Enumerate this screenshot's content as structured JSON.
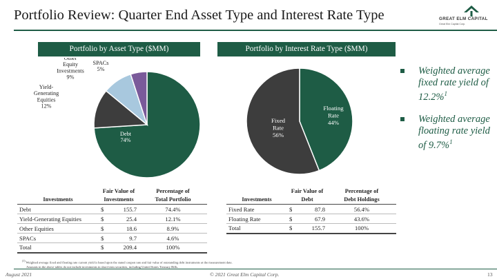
{
  "header": {
    "title": "Portfolio Review: Quarter End Asset Type and Interest Rate Type",
    "logo_name": "GREAT ELM CAPITAL",
    "logo_tagline": "Great Elm Capital Corp.",
    "brand_color": "#1e5c45"
  },
  "chart_data": [
    {
      "type": "pie",
      "title": "Portfolio by Asset Type ($MM)",
      "slices": [
        {
          "label": [
            "Debt",
            "74%"
          ],
          "value": 74,
          "color": "#1e5c45"
        },
        {
          "label": [
            "Yield-",
            "Generating",
            "Equities",
            "12%"
          ],
          "value": 12,
          "color": "#3d3d3d"
        },
        {
          "label": [
            "Other",
            "Equity",
            "Investments",
            "9%"
          ],
          "value": 9,
          "color": "#a8c8de"
        },
        {
          "label": [
            "SPACs",
            "5%"
          ],
          "value": 5,
          "color": "#7a5a9a"
        }
      ]
    },
    {
      "type": "pie",
      "title": "Portfolio by Interest Rate Type ($MM)",
      "slices": [
        {
          "label": [
            "Floating",
            "Rate",
            "44%"
          ],
          "value": 44,
          "color": "#1e5c45"
        },
        {
          "label": [
            "Fixed",
            "Rate",
            "56%"
          ],
          "value": 56,
          "color": "#3d3d3d"
        }
      ]
    }
  ],
  "bullets": [
    {
      "text": "Weighted average fixed rate yield of 12.2%",
      "sup": "1"
    },
    {
      "text": "Weighted average floating rate yield of 9.7%",
      "sup": "1"
    }
  ],
  "asset_table": {
    "headers": {
      "investments": "Investments",
      "fair_value": [
        "Fair Value of",
        "Investments"
      ],
      "percentage": [
        "Percentage of",
        "Total Portfolio"
      ]
    },
    "rows": [
      {
        "name": "Debt",
        "cur": "$",
        "value": "155.7",
        "pct": "74.4%"
      },
      {
        "name": "Yield-Generating Equities",
        "cur": "$",
        "value": "25.4",
        "pct": "12.1%"
      },
      {
        "name": "Other Equities",
        "cur": "$",
        "value": "18.6",
        "pct": "8.9%"
      },
      {
        "name": "SPACs",
        "cur": "$",
        "value": "9.7",
        "pct": "4.6%"
      }
    ],
    "total": {
      "name": "Total",
      "cur": "$",
      "value": "209.4",
      "pct": "100%"
    }
  },
  "rate_table": {
    "headers": {
      "investments": "Investments",
      "fair_value": [
        "Fair Value of",
        "Debt"
      ],
      "percentage": [
        "Percentage of",
        "Debt Holdings"
      ]
    },
    "rows": [
      {
        "name": "Fixed Rate",
        "cur": "$",
        "value": "87.8",
        "pct": "56.4%"
      },
      {
        "name": "Floating Rate",
        "cur": "$",
        "value": "67.9",
        "pct": "43.6%"
      }
    ],
    "total": {
      "name": "Total",
      "cur": "$",
      "value": "155.7",
      "pct": "100%"
    }
  },
  "footnotes": {
    "line1_sup": "(1)",
    "line1": "Weighted average fixed and floating rate current yield is based upon the stated coupon rate and fair value of outstanding debt instruments at the measurement date.",
    "line2": "Amounts in the above tables do not include investments in short-term securities, including United States Treasury Bills."
  },
  "footer": {
    "date": "August 2021",
    "copyright": "© 2021 Great Elm Capital Corp.",
    "page": "13"
  }
}
